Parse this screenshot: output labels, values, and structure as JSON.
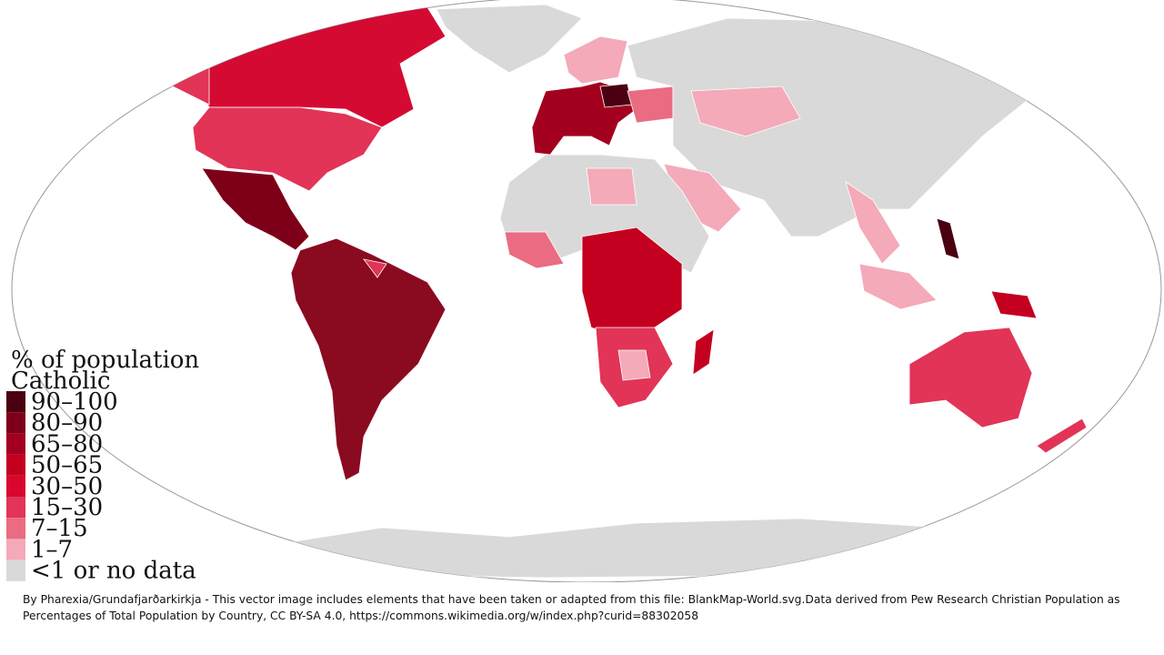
{
  "legend": {
    "title_lines": [
      "% of population",
      "Catholic"
    ],
    "items": [
      {
        "label": "90–100",
        "color": "#4a0010"
      },
      {
        "label": "80–90",
        "color": "#7d0018"
      },
      {
        "label": "65–80",
        "color": "#a3001f"
      },
      {
        "label": "50–65",
        "color": "#c40020"
      },
      {
        "label": "30–50",
        "color": "#d9062e"
      },
      {
        "label": "15–30",
        "color": "#e13457"
      },
      {
        "label": "7–15",
        "color": "#ea6b82"
      },
      {
        "label": "1–7",
        "color": "#f4aab8"
      },
      {
        "label": "<1 or no data",
        "color": "#d9d9d9"
      }
    ]
  },
  "caption": "By Pharexia/Grundafjarðarkirkja - This vector image includes elements that have been taken or adapted from this file: BlankMap-World.svg.Data derived from Pew Research Christian Population as Percentages of Total Population by Country, CC BY-SA 4.0, https://commons.wikimedia.org/w/index.php?curid=88302058"
}
